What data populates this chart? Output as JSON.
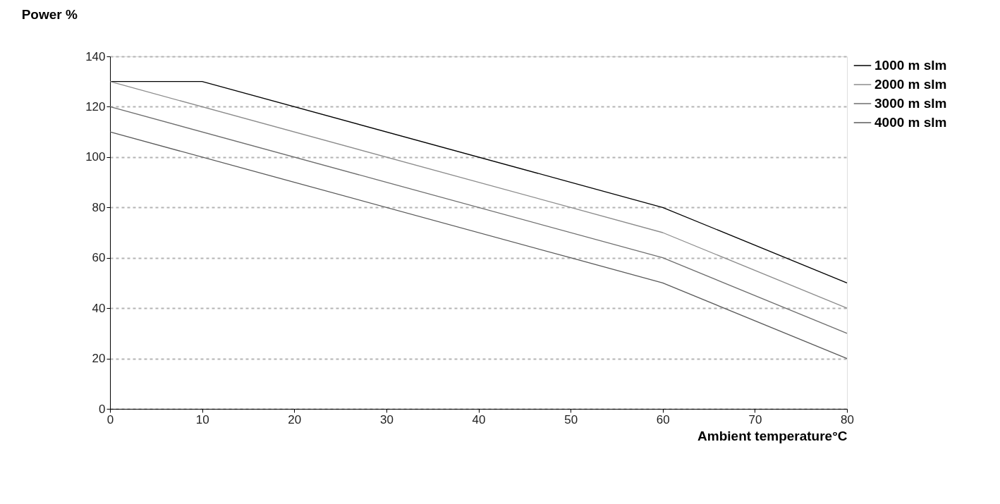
{
  "chart_data": {
    "type": "line",
    "title": "Power %",
    "xlabel": "Ambient temperature°C",
    "xlim": [
      0,
      80
    ],
    "xticks": [
      0,
      10,
      20,
      30,
      40,
      50,
      60,
      70,
      80
    ],
    "ylim": [
      0,
      140
    ],
    "yticks": [
      0,
      20,
      40,
      60,
      80,
      100,
      120,
      140
    ],
    "grid": "y",
    "legend": "right",
    "line_style": "solid",
    "marker": "none",
    "series": [
      {
        "name": "1000 m slm",
        "color": "#000000",
        "x": [
          0,
          10,
          60,
          80
        ],
        "values": [
          130,
          130,
          80,
          50
        ]
      },
      {
        "name": "2000 m slm",
        "color": "#8c8c8c",
        "x": [
          0,
          60,
          80
        ],
        "values": [
          130,
          70,
          40
        ]
      },
      {
        "name": "3000 m slm",
        "color": "#6e6e6e",
        "x": [
          0,
          60,
          80
        ],
        "values": [
          120,
          60,
          30
        ]
      },
      {
        "name": "4000 m slm",
        "color": "#5a5a5a",
        "x": [
          0,
          50,
          60,
          80
        ],
        "values": [
          110,
          60,
          50,
          20
        ]
      }
    ]
  }
}
